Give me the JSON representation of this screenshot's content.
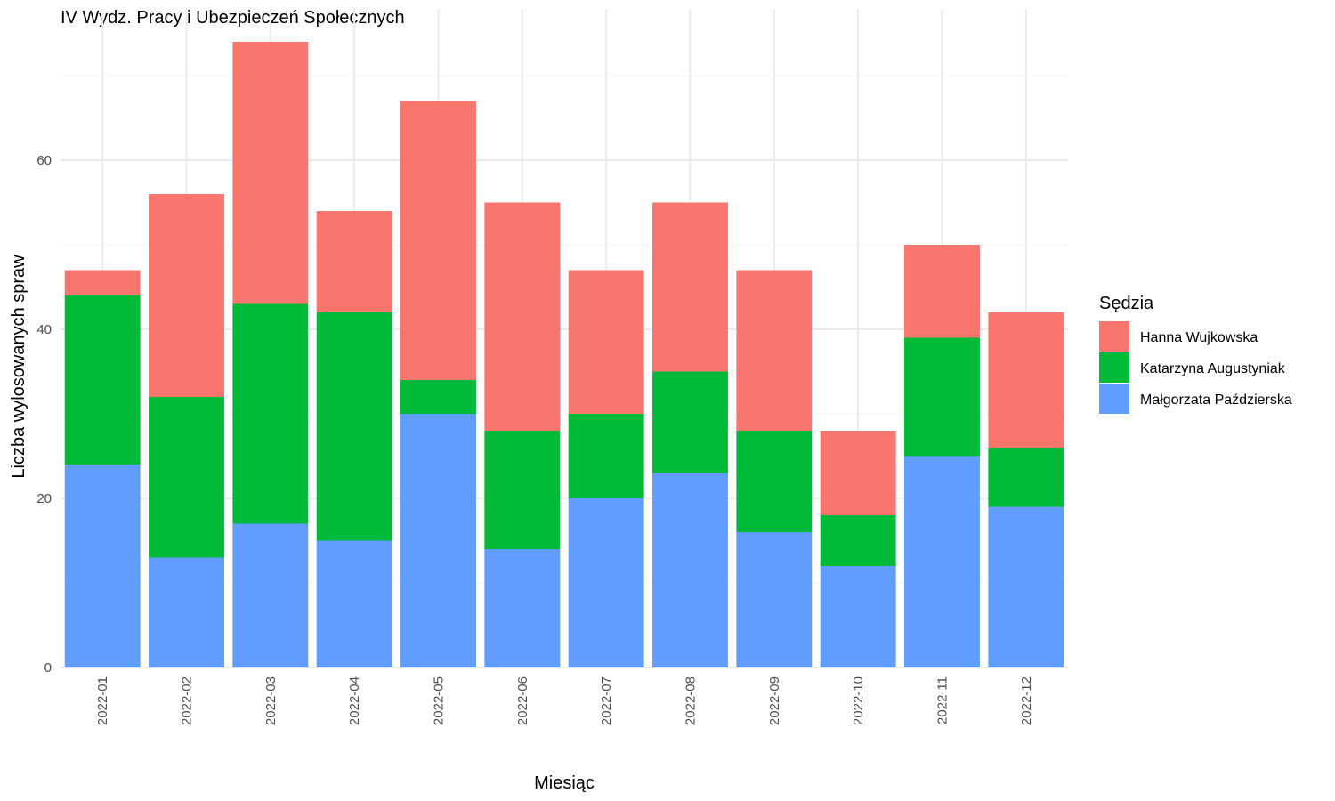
{
  "chart_data": {
    "type": "bar",
    "stacked": true,
    "title": "IV Wydz. Pracy i Ubezpieczeń Społecznych",
    "xlabel": "Miesiąc",
    "ylabel": "Liczba wylosowanych spraw",
    "ylim": [
      0,
      75
    ],
    "yticks": [
      0,
      20,
      40,
      60
    ],
    "grid": true,
    "legend_title": "Sędzia",
    "legend_position": "right",
    "categories": [
      "2022-01",
      "2022-02",
      "2022-03",
      "2022-04",
      "2022-05",
      "2022-06",
      "2022-07",
      "2022-08",
      "2022-09",
      "2022-10",
      "2022-11",
      "2022-12"
    ],
    "series": [
      {
        "name": "Małgorzata Paździerska",
        "color": "#619CFF",
        "values": [
          24,
          13,
          17,
          15,
          30,
          14,
          20,
          23,
          16,
          12,
          25,
          19
        ]
      },
      {
        "name": "Katarzyna Augustyniak",
        "color": "#00BA38",
        "values": [
          20,
          19,
          26,
          27,
          4,
          14,
          10,
          12,
          12,
          6,
          14,
          7
        ]
      },
      {
        "name": "Hanna Wujkowska",
        "color": "#F8766D",
        "values": [
          3,
          24,
          31,
          12,
          33,
          27,
          17,
          20,
          19,
          10,
          11,
          16
        ]
      }
    ],
    "legend_order": [
      "Hanna Wujkowska",
      "Katarzyna Augustyniak",
      "Małgorzata Paździerska"
    ]
  }
}
